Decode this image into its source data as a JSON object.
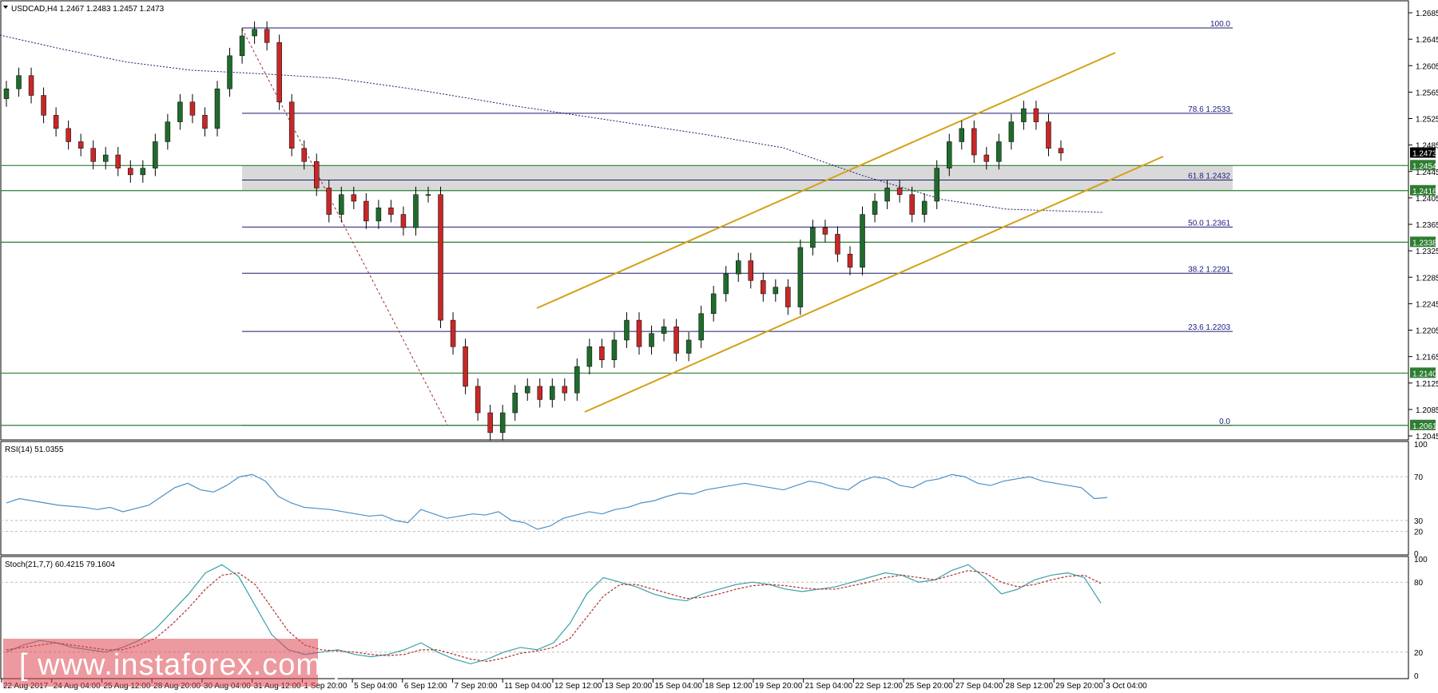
{
  "main": {
    "header": "USDCAD,H4  1.2467 1.2483 1.2457 1.2473",
    "price_axis_labels": [
      "1.2685",
      "1.2645",
      "1.2605",
      "1.2565",
      "1.2525",
      "1.2485",
      "1.2445",
      "1.2405",
      "1.2365",
      "1.2325",
      "1.2285",
      "1.2245",
      "1.2205",
      "1.2165",
      "1.2125",
      "1.2085",
      "1.2045"
    ]
  },
  "rsi": {
    "header": "RSI(14) 51.0355",
    "axis_labels": [
      "100",
      "70",
      "30",
      "20",
      "0"
    ]
  },
  "stoch": {
    "header": "Stoch(21,7,7) 60.4215 79.1604",
    "axis_labels": [
      "100",
      "80",
      "20",
      "0"
    ]
  },
  "time_axis_labels": [
    "22 Aug 2017",
    "24 Aug 04:00",
    "25 Aug 12:00",
    "28 Aug 20:00",
    "30 Aug 04:00",
    "31 Aug 12:00",
    "1 Sep 20:00",
    "5 Sep 04:00",
    "6 Sep 12:00",
    "7 Sep 20:00",
    "11 Sep 04:00",
    "12 Sep 12:00",
    "13 Sep 20:00",
    "15 Sep 04:00",
    "18 Sep 12:00",
    "19 Sep 20:00",
    "21 Sep 04:00",
    "22 Sep 12:00",
    "25 Sep 20:00",
    "27 Sep 04:00",
    "28 Sep 12:00",
    "29 Sep 20:00",
    "3 Oct 04:00"
  ],
  "fib_labels": [
    "100.0",
    "78.6 1.2533",
    "61.8 1.2432",
    "50.0 1.2361",
    "38.2 1.2291",
    "23.6 1.2203",
    "0.0"
  ],
  "price_tags": [
    "1.2473",
    "1.2454",
    "1.2416",
    "1.2338",
    "1.2140",
    "1.2061"
  ],
  "watermark": "www.instaforex.com",
  "colors": {
    "bull": "#1f6b2c",
    "bear": "#c62828",
    "channel": "#d4a017",
    "fib": "#1a1a6e",
    "support": "#2e7d32",
    "rsi": "#4a90c8",
    "stoch_main": "#3aa0a8",
    "stoch_signal": "#b03030",
    "zone": "#d9d9d9"
  },
  "chart_data": {
    "type": "candlestick",
    "symbol": "USDCAD",
    "timeframe": "H4",
    "ohlc_last": {
      "open": 1.2467,
      "high": 1.2483,
      "low": 1.2457,
      "close": 1.2473
    },
    "ylim": [
      1.2045,
      1.2685
    ],
    "candles_close_approx": [
      1.257,
      1.259,
      1.256,
      1.253,
      1.251,
      1.249,
      1.248,
      1.246,
      1.247,
      1.245,
      1.244,
      1.245,
      1.249,
      1.252,
      1.255,
      1.253,
      1.251,
      1.257,
      1.262,
      1.265,
      1.266,
      1.264,
      1.255,
      1.248,
      1.246,
      1.242,
      1.238,
      1.241,
      1.24,
      1.237,
      1.239,
      1.238,
      1.236,
      1.241,
      1.241,
      1.222,
      1.218,
      1.212,
      1.208,
      1.205,
      1.208,
      1.211,
      1.212,
      1.21,
      1.212,
      1.211,
      1.215,
      1.218,
      1.216,
      1.219,
      1.222,
      1.218,
      1.22,
      1.221,
      1.217,
      1.219,
      1.223,
      1.226,
      1.229,
      1.231,
      1.228,
      1.226,
      1.227,
      1.224,
      1.233,
      1.236,
      1.235,
      1.232,
      1.23,
      1.238,
      1.24,
      1.242,
      1.241,
      1.238,
      1.24,
      1.245,
      1.249,
      1.251,
      1.247,
      1.246,
      1.249,
      1.252,
      1.254,
      1.252,
      1.248,
      1.2473
    ],
    "levels": [
      {
        "label": "100.0",
        "price": 1.2662
      },
      {
        "label": "78.6",
        "price": 1.2533
      },
      {
        "label": "61.8",
        "price": 1.2432
      },
      {
        "label": "50.0",
        "price": 1.2361
      },
      {
        "label": "38.2",
        "price": 1.2291
      },
      {
        "label": "23.6",
        "price": 1.2203
      },
      {
        "label": "0.0",
        "price": 1.2061
      }
    ],
    "horizontal_support_resistance": [
      1.2454,
      1.2416,
      1.2338,
      1.214,
      1.2061
    ],
    "rsi": {
      "period": 14,
      "value": 51.0355,
      "levels": [
        70,
        30,
        20
      ]
    },
    "stochastic": {
      "params": [
        21,
        7,
        7
      ],
      "main": 60.4215,
      "signal": 79.1604,
      "levels": [
        80,
        20
      ]
    }
  }
}
